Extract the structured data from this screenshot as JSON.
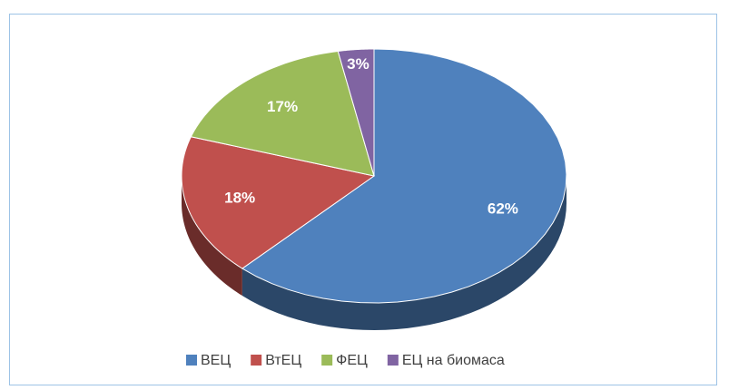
{
  "chart_data": {
    "type": "pie",
    "three_d": true,
    "categories": [
      "ВЕЦ",
      "ВтЕЦ",
      "ФЕЦ",
      "ЕЦ на биомаса"
    ],
    "values": [
      62,
      18,
      17,
      3
    ],
    "value_labels": [
      "62%",
      "18%",
      "17%",
      "3%"
    ],
    "colors": [
      "#4f81bd",
      "#c0504d",
      "#9bbb59",
      "#8064a2"
    ],
    "legend": "bottom"
  }
}
